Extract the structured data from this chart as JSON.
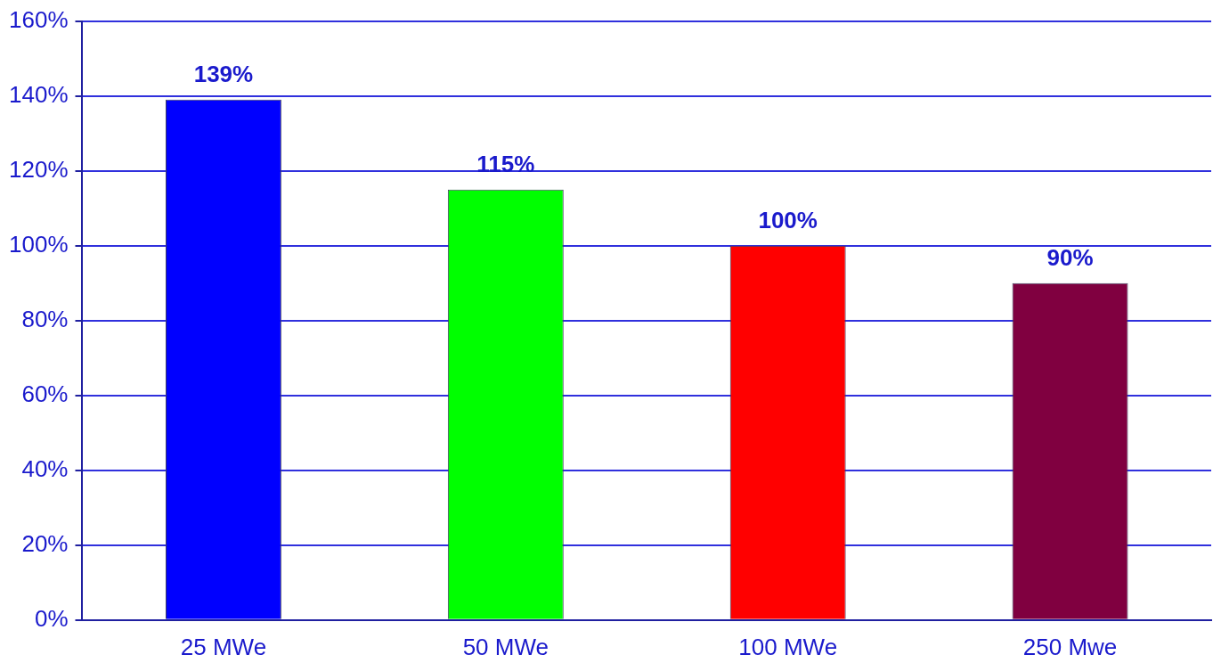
{
  "chart_data": {
    "type": "bar",
    "categories": [
      "25 MWe",
      "50 MWe",
      "100 MWe",
      "250 Mwe"
    ],
    "values": [
      139,
      115,
      100,
      90
    ],
    "colors": [
      "#0000ff",
      "#00ff00",
      "#ff0000",
      "#800040"
    ],
    "value_labels": [
      "139%",
      "115%",
      "100%",
      "90%"
    ],
    "ylim": [
      0,
      160
    ],
    "yticks": [
      {
        "value": 0,
        "label": "0%"
      },
      {
        "value": 20,
        "label": "20%"
      },
      {
        "value": 40,
        "label": "40%"
      },
      {
        "value": 60,
        "label": "60%"
      },
      {
        "value": 80,
        "label": "80%"
      },
      {
        "value": 100,
        "label": "100%"
      },
      {
        "value": 120,
        "label": "120%"
      },
      {
        "value": 140,
        "label": "140%"
      },
      {
        "value": 160,
        "label": "160%"
      }
    ],
    "grid": "y",
    "legend": false
  }
}
